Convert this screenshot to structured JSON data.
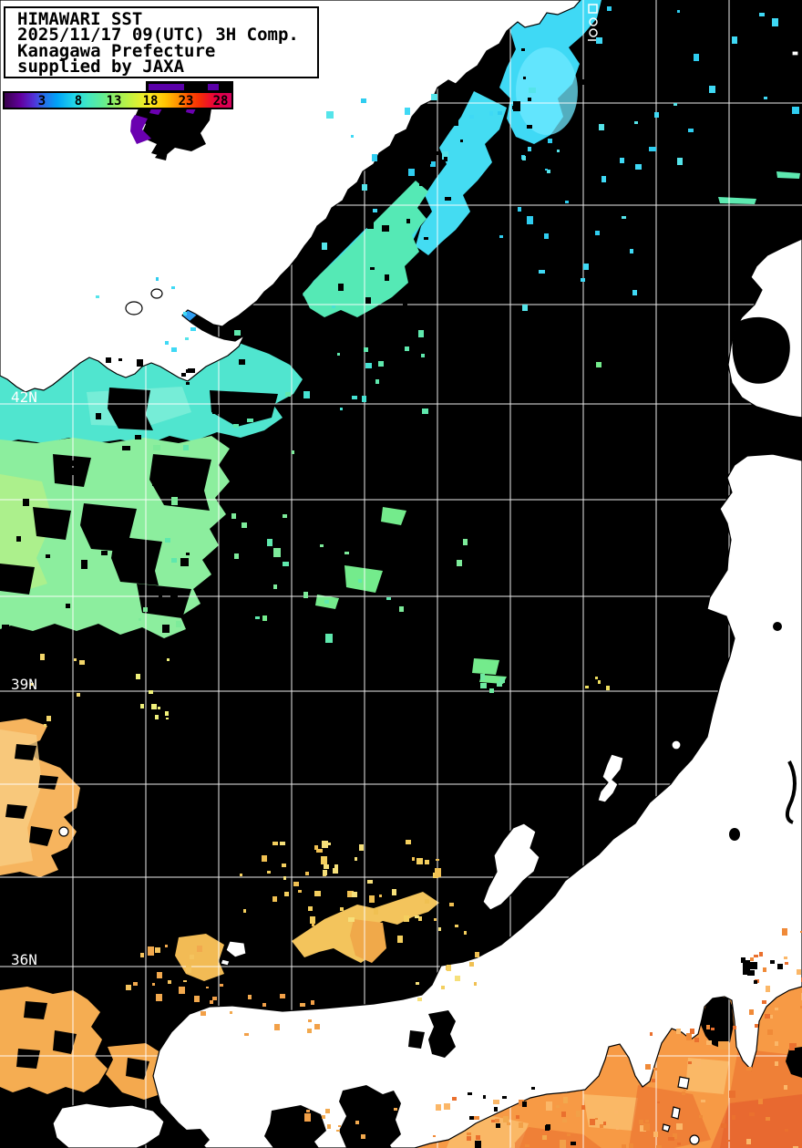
{
  "header": {
    "title": "HIMAWARI SST",
    "datetime_line": "2025/11/17 09(UTC) 3H Comp.",
    "region_line": "Kanagawa Prefecture",
    "credit_line": "supplied by JAXA"
  },
  "legend": {
    "ticks": [
      "3",
      "8",
      "13",
      "18",
      "23",
      "28"
    ],
    "gradient_colors": [
      "#38004c",
      "#62009e",
      "#2b6ae8",
      "#00a2f8",
      "#22d8e8",
      "#43e8c0",
      "#66ee8e",
      "#baf246",
      "#fce822",
      "#ffc302",
      "#ff8c00",
      "#ff5000",
      "#e80040",
      "#d4005c"
    ]
  },
  "map": {
    "latitude_labels": [
      {
        "text": "42N"
      },
      {
        "text": "39N"
      },
      {
        "text": "36N"
      }
    ],
    "colors": {
      "sea_no_data": "#000000",
      "land": "#ffffff",
      "gridline": "#ffffff",
      "cold_purple": "#5a00a8",
      "cold_blue": "#2f9df0",
      "cool_cyan": "#3fd9f5",
      "mid_turquoise": "#50e5cf",
      "mid_green": "#8cee9e",
      "warm_yellow": "#f4cf5e",
      "warm_orange": "#f79a45",
      "hot_red_orange": "#ea702e"
    }
  }
}
